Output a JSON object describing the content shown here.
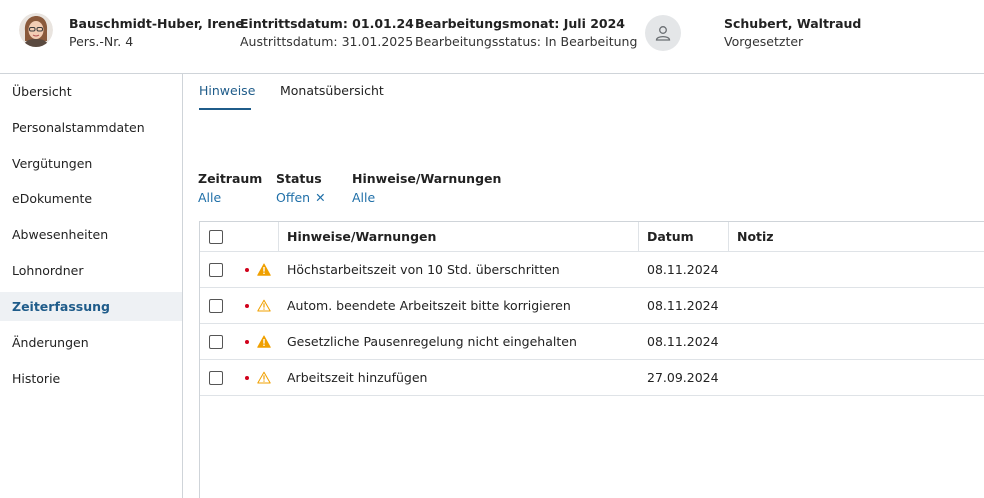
{
  "employee": {
    "name": "Bauschmidt-Huber, Irene",
    "pers_nr": "Pers.-Nr. 4",
    "entry": "Eintrittsdatum: 01.01.24",
    "exit": "Austrittsdatum: 31.01.2025",
    "month": "Bearbeitungsmonat: Juli 2024",
    "status": "Bearbeitungsstatus: In Bearbeitung"
  },
  "supervisor": {
    "name": "Schubert, Waltraud",
    "role": "Vorgesetzter"
  },
  "sidebar": {
    "items": [
      {
        "label": "Übersicht"
      },
      {
        "label": "Personalstammdaten"
      },
      {
        "label": "Vergütungen"
      },
      {
        "label": "eDokumente"
      },
      {
        "label": "Abwesenheiten"
      },
      {
        "label": "Lohnordner"
      },
      {
        "label": "Zeiterfassung",
        "active": true
      },
      {
        "label": "Änderungen"
      },
      {
        "label": "Historie"
      }
    ]
  },
  "tabs": [
    {
      "label": "Hinweise",
      "active": true
    },
    {
      "label": "Monatsübersicht"
    }
  ],
  "filters": {
    "zeitraum": {
      "label": "Zeitraum",
      "value": "Alle"
    },
    "status": {
      "label": "Status",
      "value": "Offen"
    },
    "hinweise": {
      "label": "Hinweise/Warnungen",
      "value": "Alle"
    }
  },
  "table": {
    "headers": {
      "hinweise": "Hinweise/Warnungen",
      "datum": "Datum",
      "notiz": "Notiz"
    },
    "rows": [
      {
        "text": "Höchstarbeitszeit von 10 Std. überschritten",
        "date": "08.11.2024",
        "icon": "warning-filled-icon"
      },
      {
        "text": "Autom. beendete Arbeitszeit bitte korrigieren",
        "date": "08.11.2024",
        "icon": "warning-outline-icon"
      },
      {
        "text": "Gesetzliche Pausenregelung nicht eingehalten",
        "date": "08.11.2024",
        "icon": "warning-filled-icon"
      },
      {
        "text": "Arbeitszeit hinzufügen",
        "date": "27.09.2024",
        "icon": "warning-outline-icon"
      }
    ]
  },
  "colors": {
    "accent": "#1f5c8a",
    "link": "#1f6fa8",
    "warning": "#f0a000",
    "dot": "#d0021b"
  }
}
